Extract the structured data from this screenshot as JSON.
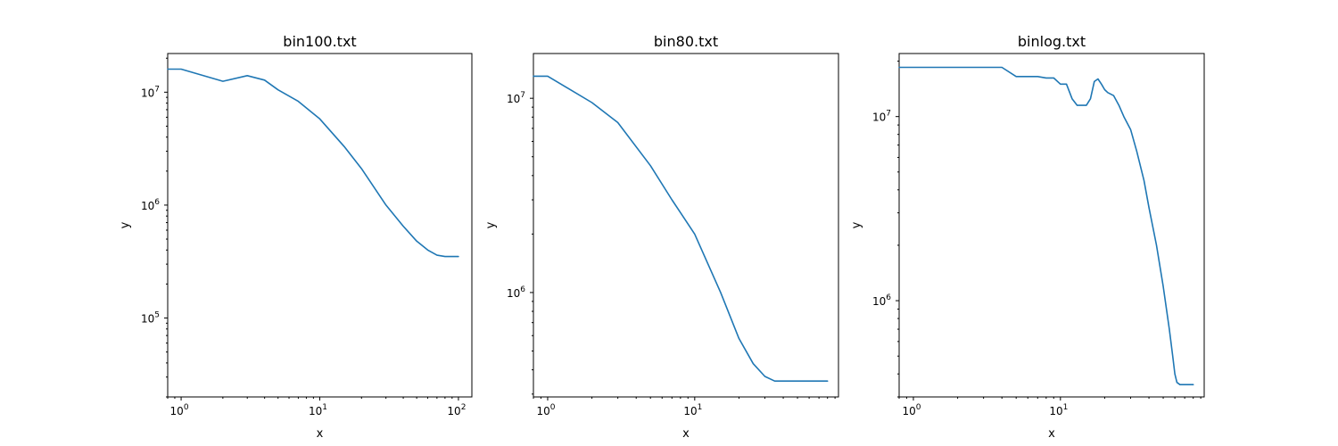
{
  "colors": {
    "series": "#1f77b4",
    "frame": "#000000",
    "background": "#ffffff"
  },
  "chart_data": [
    {
      "type": "line",
      "title": "bin100.txt",
      "xlabel": "x",
      "ylabel": "y",
      "xscale": "log",
      "yscale": "log",
      "xlim": [
        0.8,
        125
      ],
      "ylim": [
        20000,
        22000000
      ],
      "grid": false,
      "x_ticks": [
        {
          "base": "10",
          "exp": "0",
          "value": 1
        },
        {
          "base": "10",
          "exp": "1",
          "value": 10
        },
        {
          "base": "10",
          "exp": "2",
          "value": 100
        }
      ],
      "y_ticks": [
        {
          "base": "10",
          "exp": "5",
          "value": 100000
        },
        {
          "base": "10",
          "exp": "6",
          "value": 1000000
        },
        {
          "base": "10",
          "exp": "7",
          "value": 10000000
        }
      ],
      "series": [
        {
          "x": [
            0.8,
            1,
            2,
            3,
            4,
            5,
            7,
            10,
            15,
            20,
            30,
            40,
            50,
            60,
            70,
            80,
            90,
            100
          ],
          "y": [
            16000000,
            16000000,
            12500000,
            14000000,
            12800000,
            10500000,
            8300000,
            5800000,
            3300000,
            2100000,
            1000000,
            650000,
            480000,
            400000,
            360000,
            350000,
            350000,
            350000
          ]
        }
      ]
    },
    {
      "type": "line",
      "title": "bin80.txt",
      "xlabel": "x",
      "ylabel": "y",
      "xscale": "log",
      "yscale": "log",
      "xlim": [
        0.8,
        95
      ],
      "ylim": [
        290000,
        17000000
      ],
      "grid": false,
      "x_ticks": [
        {
          "base": "10",
          "exp": "0",
          "value": 1
        },
        {
          "base": "10",
          "exp": "1",
          "value": 10
        }
      ],
      "y_ticks": [
        {
          "base": "10",
          "exp": "6",
          "value": 1000000
        },
        {
          "base": "10",
          "exp": "7",
          "value": 10000000
        }
      ],
      "series": [
        {
          "x": [
            0.8,
            1,
            2,
            3,
            5,
            7,
            10,
            15,
            20,
            25,
            30,
            35,
            40,
            50,
            60,
            70,
            80
          ],
          "y": [
            13000000,
            13000000,
            9500000,
            7500000,
            4500000,
            3000000,
            2000000,
            1000000,
            580000,
            430000,
            370000,
            350000,
            350000,
            350000,
            350000,
            350000,
            350000
          ]
        }
      ]
    },
    {
      "type": "line",
      "title": "binlog.txt",
      "xlabel": "x",
      "ylabel": "y",
      "xscale": "log",
      "yscale": "log",
      "xlim": [
        0.8,
        95
      ],
      "ylim": [
        300000,
        22000000
      ],
      "grid": false,
      "x_ticks": [
        {
          "base": "10",
          "exp": "0",
          "value": 1
        },
        {
          "base": "10",
          "exp": "1",
          "value": 10
        }
      ],
      "y_ticks": [
        {
          "base": "10",
          "exp": "6",
          "value": 1000000
        },
        {
          "base": "10",
          "exp": "7",
          "value": 10000000
        }
      ],
      "series": [
        {
          "x": [
            0.8,
            1,
            4,
            5,
            7,
            8,
            9,
            10,
            11,
            12,
            13,
            14,
            15,
            16,
            17,
            18,
            19,
            20,
            21,
            23,
            25,
            27,
            30,
            33,
            37,
            40,
            45,
            50,
            55,
            58,
            60,
            62,
            65,
            70,
            75,
            80
          ],
          "y": [
            18500000,
            18500000,
            18500000,
            16500000,
            16500000,
            16200000,
            16200000,
            15000000,
            15000000,
            12500000,
            11500000,
            11500000,
            11500000,
            12500000,
            15500000,
            16000000,
            15000000,
            14000000,
            13500000,
            13000000,
            11500000,
            10000000,
            8500000,
            6500000,
            4500000,
            3200000,
            2000000,
            1200000,
            700000,
            500000,
            400000,
            360000,
            350000,
            350000,
            350000,
            350000
          ]
        }
      ]
    }
  ]
}
